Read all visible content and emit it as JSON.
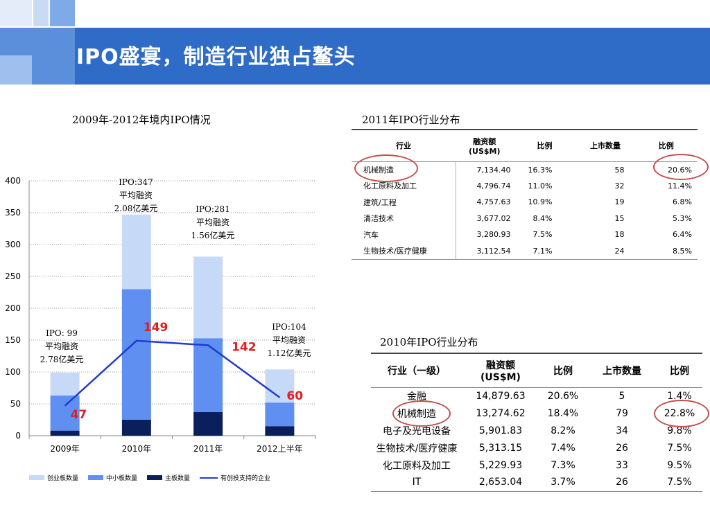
{
  "title": "IPO盛宴，制造行业独占鳌头",
  "left_chart_title": "2009年-2012年境内IPO情况",
  "chart_data": {
    "type": "bar",
    "stacked": true,
    "categories": [
      "2009年",
      "2010年",
      "2011年",
      "2012上半年"
    ],
    "ylim": [
      0,
      400
    ],
    "yticks": [
      0,
      50,
      100,
      150,
      200,
      250,
      300,
      350,
      400
    ],
    "series": [
      {
        "name": "主板数量",
        "color": "#0b1f5c",
        "values": [
          8,
          25,
          37,
          15
        ]
      },
      {
        "name": "中小板数量",
        "color": "#5f8ff0",
        "values": [
          55,
          205,
          116,
          37
        ]
      },
      {
        "name": "创业板数量",
        "color": "#c6d9f6",
        "values": [
          36,
          117,
          128,
          52
        ]
      }
    ],
    "line": {
      "name": "有创投支持的企业",
      "color": "#1f3ccc",
      "values": [
        47,
        149,
        142,
        60
      ]
    },
    "annotations": [
      {
        "lines": [
          "IPO: 99",
          "平均融资",
          "2.78亿美元"
        ]
      },
      {
        "lines": [
          "IPO:347",
          "平均融资",
          "2.08亿美元"
        ]
      },
      {
        "lines": [
          "IPO:281",
          "平均融资",
          "1.56亿美元"
        ]
      },
      {
        "lines": [
          "IPO:104",
          "平均融资",
          "1.12亿美元"
        ]
      }
    ],
    "legend": [
      "创业板数量",
      "中小板数量",
      "主板数量",
      "有创投支持的企业"
    ],
    "grid": true
  },
  "table2011": {
    "title": "2011年IPO行业分布",
    "headers": [
      "行业",
      "融资额\n(US$M)",
      "比例",
      "上市数量",
      "比例"
    ],
    "rows": [
      [
        "机械制造",
        "7,134.40",
        "16.3%",
        "58",
        "20.6%"
      ],
      [
        "化工原料及加工",
        "4,796.74",
        "11.0%",
        "32",
        "11.4%"
      ],
      [
        "建筑/工程",
        "4,757.63",
        "10.9%",
        "19",
        "6.8%"
      ],
      [
        "清洁技术",
        "3,677.02",
        "8.4%",
        "15",
        "5.3%"
      ],
      [
        "汽车",
        "3,280.93",
        "7.5%",
        "18",
        "6.4%"
      ],
      [
        "生物技术/医疗健康",
        "3,112.54",
        "7.1%",
        "24",
        "8.5%"
      ]
    ]
  },
  "table2010": {
    "title": "2010年IPO行业分布",
    "headers": [
      "行业（一级）",
      "融资额\n(US$M)",
      "比例",
      "上市数量",
      "比例"
    ],
    "rows": [
      [
        "金融",
        "14,879.63",
        "20.6%",
        "5",
        "1.4%"
      ],
      [
        "机械制造",
        "13,274.62",
        "18.4%",
        "79",
        "22.8%"
      ],
      [
        "电子及光电设备",
        "5,901.83",
        "8.2%",
        "34",
        "9.8%"
      ],
      [
        "生物技术/医疗健康",
        "5,313.15",
        "7.4%",
        "26",
        "7.5%"
      ],
      [
        "化工原料及加工",
        "5,229.93",
        "7.3%",
        "33",
        "9.5%"
      ],
      [
        "IT",
        "2,653.04",
        "3.7%",
        "26",
        "7.5%"
      ]
    ]
  }
}
